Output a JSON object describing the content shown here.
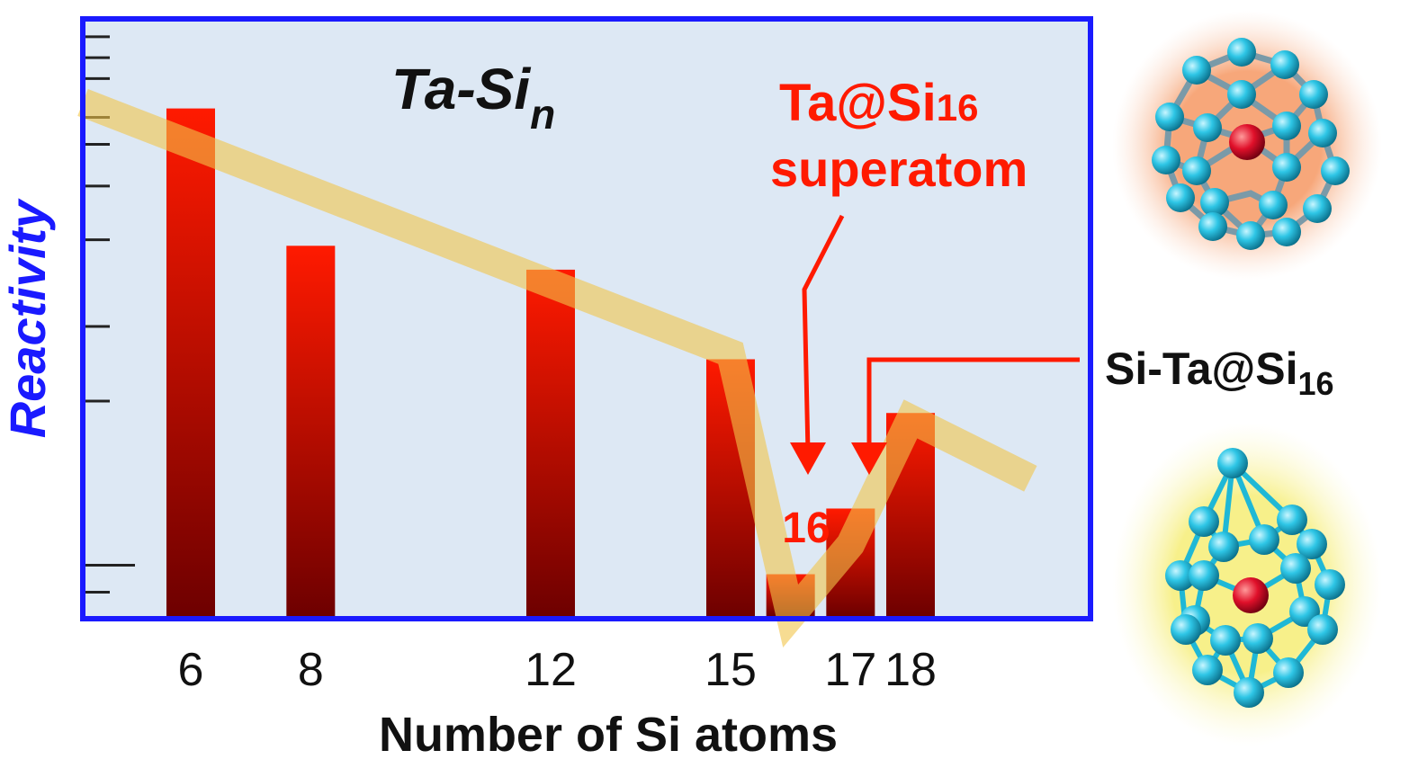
{
  "chart_data": {
    "type": "bar",
    "title": "Ta-Si",
    "title_subscript": "n",
    "xlabel": "Number of Si atoms",
    "ylabel": "Reactivity",
    "categories": [
      "6",
      "8",
      "12",
      "15",
      "16",
      "17",
      "18"
    ],
    "x": [
      6,
      8,
      12,
      15,
      16,
      17,
      18
    ],
    "values": [
      0.85,
      0.62,
      0.58,
      0.43,
      0.07,
      0.18,
      0.34
    ],
    "ylim": [
      0,
      1
    ],
    "xlim": [
      4.2,
      21
    ],
    "trend": {
      "x": [
        4.2,
        15,
        16,
        17,
        18,
        20
      ],
      "y": [
        0.86,
        0.44,
        0.0,
        0.12,
        0.33,
        0.23
      ]
    },
    "colors": {
      "bar_top": "#ff1a00",
      "bar_bottom": "#6e0000",
      "frame": "#1a1aff",
      "plot_bg": "#dde8f4",
      "trend": "#f2c44a",
      "annotation": "#ff1a00",
      "ylabel": "#1a1aff"
    },
    "annotations": {
      "superatom_line1": "Ta@Si",
      "superatom_line1_sub": "16",
      "superatom_line2": "superatom",
      "bar_label": "16",
      "side_label": "Si-Ta@Si",
      "side_label_sub": "16"
    },
    "grid": false,
    "legend": "none"
  },
  "images": {
    "top": {
      "description_icon": "ta-si16-cage-icon"
    },
    "bottom": {
      "description_icon": "si-ta-si16-cage-icon"
    }
  }
}
